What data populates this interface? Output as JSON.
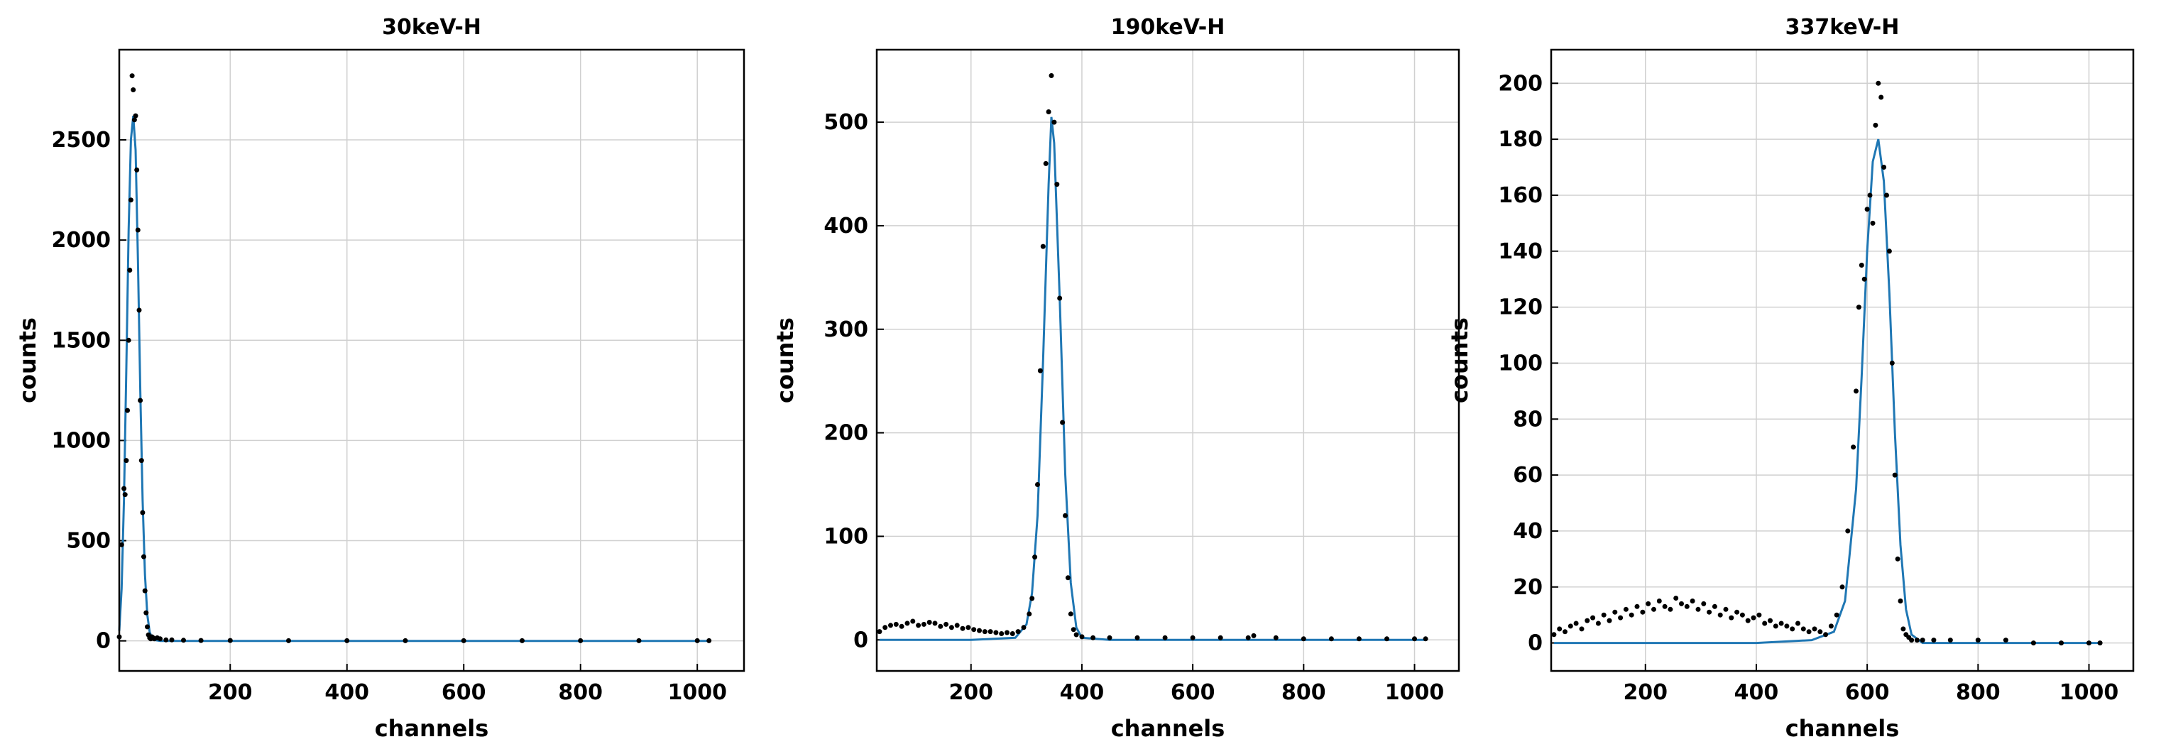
{
  "colors": {
    "fit_line": "#1f77b4",
    "points": "#000000",
    "grid": "#d0d0d0",
    "axes": "#000000"
  },
  "chart_data": [
    {
      "type": "scatter",
      "title": "30keV-H",
      "xlabel": "channels",
      "ylabel": "counts",
      "xlim": [
        10,
        1080
      ],
      "ylim": [
        -150,
        2950
      ],
      "xticks": [
        200,
        400,
        600,
        800,
        1000
      ],
      "yticks": [
        0,
        500,
        1000,
        1500,
        2000,
        2500
      ],
      "grid": true,
      "series": [
        {
          "kind": "points",
          "description": "measured counts per channel",
          "x": [
            10,
            14,
            18,
            20,
            22,
            24,
            26,
            28,
            30,
            32,
            34,
            36,
            38,
            40,
            42,
            44,
            46,
            48,
            50,
            52,
            54,
            56,
            58,
            60,
            62,
            64,
            66,
            68,
            70,
            75,
            80,
            90,
            100,
            120,
            150,
            200,
            300,
            400,
            500,
            600,
            700,
            800,
            900,
            1000,
            1020
          ],
          "y": [
            20,
            480,
            760,
            730,
            900,
            1150,
            1500,
            1850,
            2200,
            2820,
            2750,
            2600,
            2620,
            2350,
            2050,
            1650,
            1200,
            900,
            640,
            420,
            250,
            140,
            70,
            30,
            15,
            10,
            20,
            15,
            10,
            15,
            10,
            5,
            5,
            3,
            2,
            2,
            1,
            1,
            1,
            1,
            1,
            1,
            1,
            1,
            1
          ]
        },
        {
          "kind": "line",
          "description": "gaussian fit",
          "x": [
            10,
            14,
            18,
            22,
            26,
            30,
            34,
            38,
            42,
            46,
            50,
            54,
            58,
            62,
            66,
            70,
            80,
            100,
            200,
            400,
            600,
            800,
            1000,
            1020
          ],
          "y": [
            50,
            260,
            700,
            1350,
            2050,
            2500,
            2620,
            2450,
            1900,
            1250,
            700,
            330,
            130,
            45,
            15,
            5,
            0,
            0,
            0,
            0,
            0,
            0,
            0,
            0
          ]
        }
      ]
    },
    {
      "type": "scatter",
      "title": "190keV-H",
      "xlabel": "channels",
      "ylabel": "counts",
      "xlim": [
        30,
        1080
      ],
      "ylim": [
        -30,
        570
      ],
      "xticks": [
        200,
        400,
        600,
        800,
        1000
      ],
      "yticks": [
        0,
        100,
        200,
        300,
        400,
        500
      ],
      "grid": true,
      "series": [
        {
          "kind": "points",
          "description": "measured counts per channel",
          "x": [
            35,
            45,
            55,
            65,
            75,
            85,
            95,
            105,
            115,
            125,
            135,
            145,
            155,
            165,
            175,
            185,
            195,
            205,
            215,
            225,
            235,
            245,
            255,
            265,
            275,
            285,
            295,
            305,
            310,
            315,
            320,
            325,
            330,
            335,
            340,
            345,
            350,
            355,
            360,
            365,
            370,
            375,
            380,
            385,
            390,
            400,
            420,
            450,
            500,
            550,
            600,
            650,
            700,
            710,
            750,
            800,
            850,
            900,
            950,
            1000,
            1020
          ],
          "y": [
            8,
            12,
            14,
            15,
            13,
            16,
            18,
            14,
            15,
            17,
            16,
            13,
            15,
            12,
            14,
            11,
            12,
            10,
            9,
            8,
            8,
            7,
            6,
            7,
            6,
            8,
            12,
            25,
            40,
            80,
            150,
            260,
            380,
            460,
            510,
            545,
            500,
            440,
            330,
            210,
            120,
            60,
            25,
            10,
            5,
            3,
            2,
            2,
            2,
            2,
            2,
            2,
            2,
            4,
            2,
            1,
            1,
            1,
            1,
            1,
            1
          ]
        },
        {
          "kind": "line",
          "description": "gaussian fit",
          "x": [
            35,
            100,
            200,
            280,
            300,
            310,
            320,
            330,
            340,
            345,
            350,
            360,
            370,
            380,
            390,
            400,
            450,
            600,
            800,
            1000,
            1020
          ],
          "y": [
            0,
            0,
            0,
            2,
            15,
            45,
            120,
            270,
            440,
            505,
            480,
            330,
            160,
            55,
            12,
            2,
            0,
            0,
            0,
            0,
            0
          ]
        }
      ]
    },
    {
      "type": "scatter",
      "title": "337keV-H",
      "xlabel": "channels",
      "ylabel": "counts",
      "xlim": [
        30,
        1080
      ],
      "ylim": [
        -10,
        212
      ],
      "xticks": [
        200,
        400,
        600,
        800,
        1000
      ],
      "yticks": [
        0,
        20,
        40,
        60,
        80,
        100,
        120,
        140,
        160,
        180,
        200
      ],
      "grid": true,
      "series": [
        {
          "kind": "points",
          "description": "measured counts per channel",
          "x": [
            35,
            45,
            55,
            65,
            75,
            85,
            95,
            105,
            115,
            125,
            135,
            145,
            155,
            165,
            175,
            185,
            195,
            205,
            215,
            225,
            235,
            245,
            255,
            265,
            275,
            285,
            295,
            305,
            315,
            325,
            335,
            345,
            355,
            365,
            375,
            385,
            395,
            405,
            415,
            425,
            435,
            445,
            455,
            465,
            475,
            485,
            495,
            505,
            515,
            525,
            535,
            545,
            555,
            565,
            575,
            580,
            585,
            590,
            595,
            600,
            605,
            610,
            615,
            620,
            625,
            630,
            635,
            640,
            645,
            650,
            655,
            660,
            665,
            670,
            675,
            680,
            690,
            700,
            720,
            750,
            800,
            850,
            900,
            950,
            1000,
            1020
          ],
          "y": [
            3,
            5,
            4,
            6,
            7,
            5,
            8,
            9,
            7,
            10,
            8,
            11,
            9,
            12,
            10,
            13,
            11,
            14,
            12,
            15,
            13,
            12,
            16,
            14,
            13,
            15,
            12,
            14,
            11,
            13,
            10,
            12,
            9,
            11,
            10,
            8,
            9,
            10,
            7,
            8,
            6,
            7,
            6,
            5,
            7,
            5,
            4,
            5,
            4,
            3,
            6,
            10,
            20,
            40,
            70,
            90,
            120,
            135,
            130,
            155,
            160,
            150,
            185,
            200,
            195,
            170,
            160,
            140,
            100,
            60,
            30,
            15,
            5,
            3,
            2,
            1,
            1,
            1,
            1,
            1,
            1,
            1,
            0,
            0,
            0,
            0
          ]
        },
        {
          "kind": "line",
          "description": "gaussian fit",
          "x": [
            35,
            200,
            400,
            500,
            540,
            560,
            580,
            590,
            600,
            610,
            620,
            630,
            640,
            650,
            660,
            670,
            680,
            700,
            800,
            1000,
            1020
          ],
          "y": [
            0,
            0,
            0,
            1,
            4,
            15,
            55,
            95,
            140,
            172,
            180,
            165,
            125,
            75,
            35,
            12,
            3,
            0,
            0,
            0,
            0
          ]
        }
      ]
    }
  ]
}
